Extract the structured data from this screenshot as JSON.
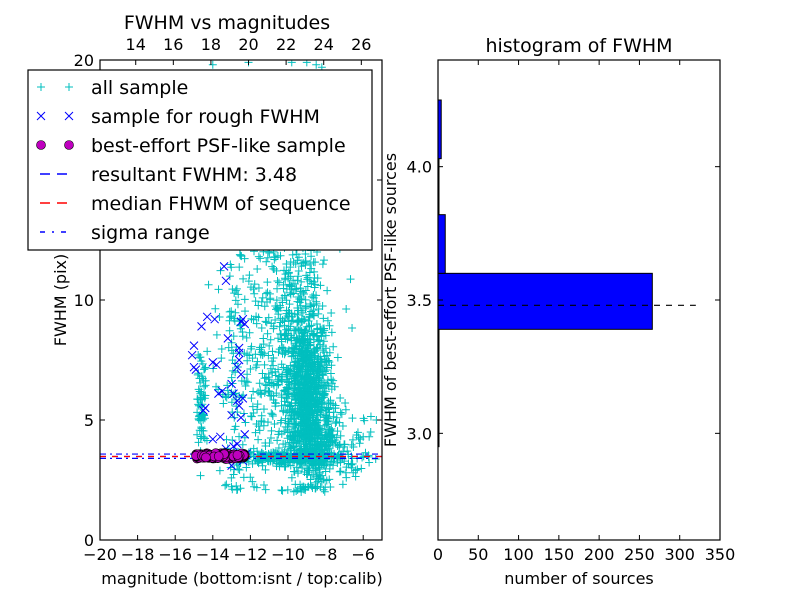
{
  "chart_data": [
    {
      "type": "scatter",
      "title": "FWHM vs magnitudes",
      "xlabel": "magnitude (bottom:isnt / top:calib)",
      "ylabel": "FWHM (pix)",
      "xlim": [
        -20,
        -5
      ],
      "ylim": [
        0,
        20
      ],
      "xticks": [
        -20,
        -18,
        -16,
        -14,
        -12,
        -10,
        -8,
        -6
      ],
      "xtick_labels": [
        "−20",
        "−18",
        "−16",
        "−14",
        "−12",
        "−10",
        "−8",
        "−6"
      ],
      "yticks": [
        0,
        5,
        10,
        15,
        20
      ],
      "ytick_labels": [
        "0",
        "5",
        "10",
        "15",
        "20"
      ],
      "top_axis": {
        "offset": 32.1,
        "ticks": [
          14,
          16,
          18,
          20,
          22,
          24,
          26
        ],
        "tick_labels": [
          "14",
          "16",
          "18",
          "20",
          "22",
          "24",
          "26"
        ]
      },
      "grid": false,
      "legend": {
        "placement": "upper-left",
        "entries": [
          {
            "label": "all sample",
            "marker": "plus",
            "color": "#00bfbf"
          },
          {
            "label": "sample for rough FWHM",
            "marker": "x",
            "color": "#0000ff"
          },
          {
            "label": "best-effort PSF-like sample",
            "marker": "circle",
            "color": "#bf00bf"
          },
          {
            "label": "resultant FWHM: 3.48",
            "marker": "dashed",
            "color": "#0000ff"
          },
          {
            "label": "median FHWM of sequence",
            "marker": "dashed",
            "color": "#ff0000"
          },
          {
            "label": "sigma range",
            "marker": "dashdot",
            "color": "#0000ff"
          }
        ]
      },
      "series": [
        {
          "name": "all sample",
          "marker": "plus",
          "color": "#00bfbf",
          "clusters": [
            {
              "x_mean": -9.0,
              "x_sd": 0.55,
              "y_mean": 6.0,
              "y_sd": 1.8,
              "n": 900
            },
            {
              "x_mean": -9.6,
              "x_sd": 0.9,
              "y_mean": 9.0,
              "y_sd": 2.6,
              "n": 320
            },
            {
              "x_mean": -8.6,
              "x_sd": 0.9,
              "y_mean": 4.2,
              "y_sd": 0.9,
              "n": 260
            },
            {
              "x_mean": -11.5,
              "x_sd": 0.7,
              "y_mean": 6.5,
              "y_sd": 2.5,
              "n": 140
            },
            {
              "x_mean": -14.6,
              "x_sd": 0.12,
              "y_mean": 5.6,
              "y_sd": 1.1,
              "n": 70
            },
            {
              "x_mean": -12.9,
              "x_sd": 0.5,
              "y_mean": 7.5,
              "y_sd": 3.0,
              "n": 110
            },
            {
              "x_mean": -10.0,
              "x_sd": 1.6,
              "y_mean": 3.45,
              "y_sd": 0.15,
              "n": 220
            },
            {
              "x_mean": -7.2,
              "x_sd": 0.8,
              "y_mean": 3.4,
              "y_sd": 0.6,
              "n": 60
            },
            {
              "x_mean": -10.5,
              "x_sd": 1.2,
              "y_mean": 12.5,
              "y_sd": 1.5,
              "n": 90
            }
          ],
          "extra_points": [
            [
              -14.0,
              19.8
            ],
            [
              -12.1,
              19.9
            ],
            [
              -9.8,
              19.9
            ],
            [
              -9.0,
              19.9
            ],
            [
              -8.5,
              19.8
            ],
            [
              -8.2,
              19.7
            ],
            [
              -9.3,
              2.0
            ],
            [
              -8.8,
              2.3
            ],
            [
              -6.0,
              4.3
            ],
            [
              -5.3,
              5.0
            ],
            [
              -5.6,
              4.5
            ],
            [
              -6.4,
              2.9
            ],
            [
              -6.9,
              2.6
            ]
          ]
        },
        {
          "name": "sample for rough FWHM",
          "marker": "x",
          "color": "#0000ff",
          "points": [
            [
              -13.4,
              11.4
            ],
            [
              -13.3,
              10.8
            ],
            [
              -14.3,
              9.3
            ],
            [
              -14.6,
              8.9
            ],
            [
              -12.5,
              9.1
            ],
            [
              -12.4,
              9.2
            ],
            [
              -12.3,
              9.0
            ],
            [
              -13.9,
              9.2
            ],
            [
              -13.2,
              8.4
            ],
            [
              -12.6,
              8.0
            ],
            [
              -12.6,
              7.8
            ],
            [
              -15.1,
              7.7
            ],
            [
              -15.0,
              8.1
            ],
            [
              -15.0,
              7.2
            ],
            [
              -14.9,
              7.1
            ],
            [
              -14.0,
              7.4
            ],
            [
              -13.8,
              7.3
            ],
            [
              -12.6,
              7.5
            ],
            [
              -12.7,
              7.2
            ],
            [
              -12.5,
              6.9
            ],
            [
              -13.0,
              6.5
            ],
            [
              -12.9,
              6.1
            ],
            [
              -13.7,
              6.1
            ],
            [
              -13.5,
              6.2
            ],
            [
              -12.7,
              5.8
            ],
            [
              -12.4,
              5.9
            ],
            [
              -12.6,
              5.6
            ],
            [
              -14.4,
              5.5
            ],
            [
              -14.5,
              5.4
            ],
            [
              -12.5,
              5.1
            ],
            [
              -13.0,
              5.2
            ],
            [
              -14.0,
              4.2
            ],
            [
              -13.6,
              4.3
            ],
            [
              -12.3,
              4.4
            ],
            [
              -12.7,
              4.0
            ],
            [
              -12.9,
              3.9
            ],
            [
              -13.3,
              3.8
            ],
            [
              -13.0,
              3.1
            ],
            [
              -12.4,
              3.3
            ],
            [
              -12.2,
              3.6
            ]
          ]
        },
        {
          "name": "best-effort PSF-like sample",
          "marker": "circle",
          "color": "#bf00bf",
          "cluster": {
            "x_min": -14.9,
            "x_max": -12.3,
            "y_mean": 3.5,
            "y_sd": 0.05,
            "n": 280
          }
        }
      ],
      "hlines": [
        {
          "name": "resultant FWHM",
          "y": 3.48,
          "style": "dashed",
          "color": "#0000ff"
        },
        {
          "name": "median FHWM of sequence",
          "y": 3.48,
          "style": "dashed",
          "color": "#ff0000"
        },
        {
          "name": "sigma range upper",
          "y": 3.58,
          "style": "dashdot",
          "color": "#0000ff"
        },
        {
          "name": "sigma range lower",
          "y": 3.4,
          "style": "dashdot",
          "color": "#0000ff"
        }
      ]
    },
    {
      "type": "bar",
      "orientation": "horizontal",
      "title": "histogram of FWHM",
      "xlabel": "number of sources",
      "ylabel": "FWHM of best-effort PSF-like sources",
      "xlim": [
        0,
        350
      ],
      "ylim": [
        2.6,
        4.4
      ],
      "xticks": [
        0,
        50,
        100,
        150,
        200,
        250,
        300,
        350
      ],
      "xtick_labels": [
        "0",
        "50",
        "100",
        "150",
        "200",
        "250",
        "300",
        "350"
      ],
      "yticks": [
        3.0,
        3.5,
        4.0
      ],
      "ytick_labels": [
        "3.0",
        "3.5",
        "4.0"
      ],
      "grid": false,
      "bar_color": "#0000ff",
      "bins": [
        {
          "y0": 2.95,
          "y1": 3.17,
          "count": 1
        },
        {
          "y0": 3.17,
          "y1": 3.39,
          "count": 1
        },
        {
          "y0": 3.39,
          "y1": 3.6,
          "count": 266
        },
        {
          "y0": 3.6,
          "y1": 3.82,
          "count": 9
        },
        {
          "y0": 3.82,
          "y1": 4.03,
          "count": 1
        },
        {
          "y0": 4.03,
          "y1": 4.25,
          "count": 4
        }
      ],
      "reference_line": {
        "y": 3.48,
        "x_max": 320,
        "style": "dashed",
        "color": "#000000"
      }
    }
  ]
}
